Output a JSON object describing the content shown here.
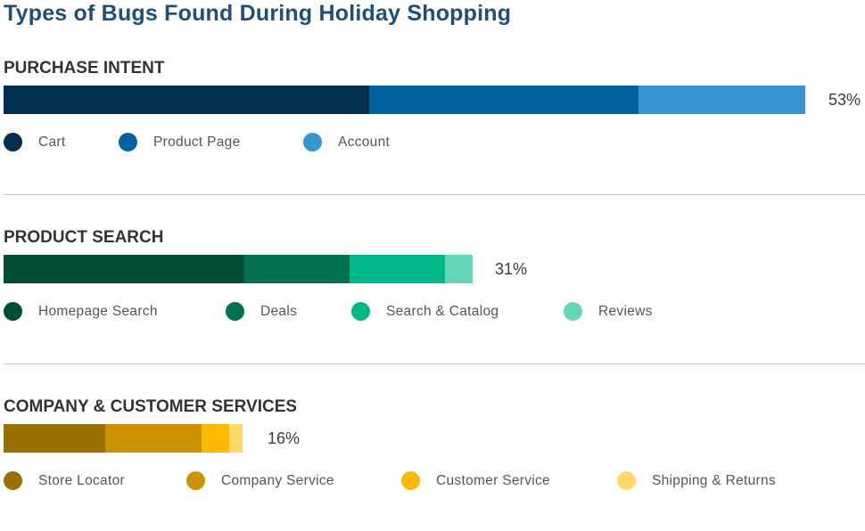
{
  "title": "Types of Bugs Found During Holiday Shopping",
  "chart_data": {
    "type": "bar",
    "orientation": "horizontal",
    "stacked": true,
    "title": "Types of Bugs Found During Holiday Shopping",
    "unit": "%",
    "xlim": [
      0,
      53
    ],
    "groups": [
      {
        "name": "PURCHASE INTENT",
        "total_label": "53%",
        "total": 53,
        "segments": [
          {
            "name": "Cart",
            "value": 24.2,
            "color": "#002f50"
          },
          {
            "name": "Product Page",
            "value": 17.8,
            "color": "#00639f"
          },
          {
            "name": "Account",
            "value": 11.0,
            "color": "#3696d2"
          }
        ]
      },
      {
        "name": "PRODUCT SEARCH",
        "total_label": "31%",
        "total": 31,
        "segments": [
          {
            "name": "Homepage Search",
            "value": 15.9,
            "color": "#004d35"
          },
          {
            "name": "Deals",
            "value": 7.0,
            "color": "#00714f"
          },
          {
            "name": "Search & Catalog",
            "value": 6.3,
            "color": "#00b68a"
          },
          {
            "name": "Reviews",
            "value": 1.8,
            "color": "#65d5ba"
          }
        ]
      },
      {
        "name": "COMPANY & CUSTOMER SERVICES",
        "total_label": "16%",
        "total": 16,
        "segments": [
          {
            "name": "Store Locator",
            "value": 6.7,
            "color": "#9a7000"
          },
          {
            "name": "Company Service",
            "value": 6.4,
            "color": "#cc9200"
          },
          {
            "name": "Customer Service",
            "value": 1.8,
            "color": "#ffba00"
          },
          {
            "name": "Shipping & Returns",
            "value": 0.9,
            "color": "#fed86a"
          }
        ]
      }
    ]
  }
}
